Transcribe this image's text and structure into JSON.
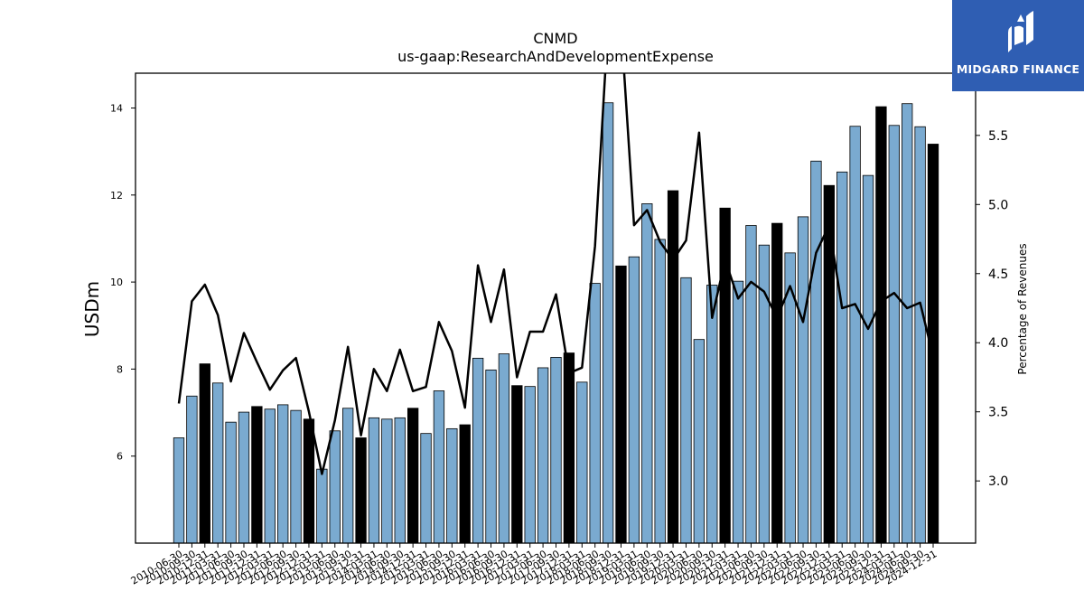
{
  "chart_data": {
    "type": "bar",
    "title": "CNMD",
    "subtitle": "us-gaap:ResearchAndDevelopmentExpense",
    "ylabel": "USDm",
    "y2label": "Percentage of Revenues",
    "ylim": [
      4.0,
      14.8
    ],
    "y2lim": [
      2.55,
      5.95
    ],
    "yticks": [
      6,
      8,
      10,
      12,
      14
    ],
    "y2ticks": [
      3.0,
      3.5,
      4.0,
      4.5,
      5.0,
      5.5
    ],
    "colors": {
      "bar": "#7aaad0",
      "bar_q4": "#000000",
      "line": "#000000"
    },
    "categories": [
      "2010-06-30",
      "2010-09-30",
      "2010-12-31",
      "2011-03-31",
      "2011-06-30",
      "2011-09-30",
      "2011-12-31",
      "2012-03-31",
      "2012-06-30",
      "2012-09-30",
      "2012-12-31",
      "2013-03-31",
      "2013-06-30",
      "2013-09-30",
      "2013-12-31",
      "2014-03-31",
      "2014-06-30",
      "2014-09-30",
      "2014-12-31",
      "2015-03-31",
      "2015-06-30",
      "2015-09-30",
      "2015-12-31",
      "2016-03-31",
      "2016-06-30",
      "2016-09-30",
      "2016-12-31",
      "2017-03-31",
      "2017-06-30",
      "2017-09-30",
      "2017-12-31",
      "2018-03-31",
      "2018-06-30",
      "2018-09-30",
      "2018-12-31",
      "2019-03-31",
      "2019-06-30",
      "2019-09-30",
      "2019-12-31",
      "2020-03-31",
      "2020-06-30",
      "2020-09-30",
      "2020-12-31",
      "2021-03-31",
      "2021-06-30",
      "2021-09-30",
      "2021-12-31",
      "2022-03-31",
      "2022-06-30",
      "2022-09-30",
      "2022-12-31",
      "2023-03-31",
      "2023-06-30",
      "2023-09-30",
      "2023-12-31",
      "2024-03-31",
      "2024-06-30",
      "2024-09-30",
      "2024-12-31"
    ],
    "series": [
      {
        "type": "bar",
        "values": [
          6.42,
          7.38,
          8.12,
          7.68,
          6.78,
          7.01,
          7.14,
          7.08,
          7.18,
          7.05,
          6.85,
          5.7,
          6.58,
          7.1,
          6.42,
          6.88,
          6.85,
          6.88,
          7.1,
          6.52,
          7.5,
          6.63,
          6.72,
          8.25,
          7.98,
          8.35,
          7.62,
          7.6,
          8.03,
          8.27,
          8.37,
          7.7,
          9.97,
          14.12,
          10.37,
          10.58,
          11.8,
          10.98,
          12.1,
          10.1,
          8.68,
          9.93,
          11.7,
          10.02,
          11.3,
          10.85,
          11.35,
          10.67,
          11.5,
          12.78,
          12.22,
          12.53,
          13.58,
          12.45,
          14.03,
          13.6,
          14.1,
          13.57,
          13.17
        ]
      },
      {
        "type": "line",
        "axis": "right",
        "values": [
          3.56,
          4.3,
          4.42,
          4.2,
          3.72,
          4.07,
          3.86,
          3.66,
          3.8,
          3.89,
          3.5,
          3.05,
          3.44,
          3.97,
          3.33,
          3.81,
          3.65,
          3.95,
          3.65,
          3.68,
          4.15,
          3.94,
          3.53,
          4.56,
          4.15,
          4.53,
          3.75,
          4.08,
          4.08,
          4.35,
          3.78,
          3.82,
          4.7,
          6.3,
          6.3,
          4.85,
          4.96,
          4.73,
          4.6,
          4.74,
          5.52,
          4.18,
          4.6,
          4.32,
          4.44,
          4.37,
          4.18,
          4.41,
          4.15,
          4.65,
          4.85,
          4.25,
          4.28,
          4.1,
          4.3,
          4.36,
          4.25,
          4.29,
          3.9
        ]
      }
    ]
  },
  "logo": {
    "text": "MIDGARD FINANCE",
    "icon": "midgard-logo-icon"
  }
}
